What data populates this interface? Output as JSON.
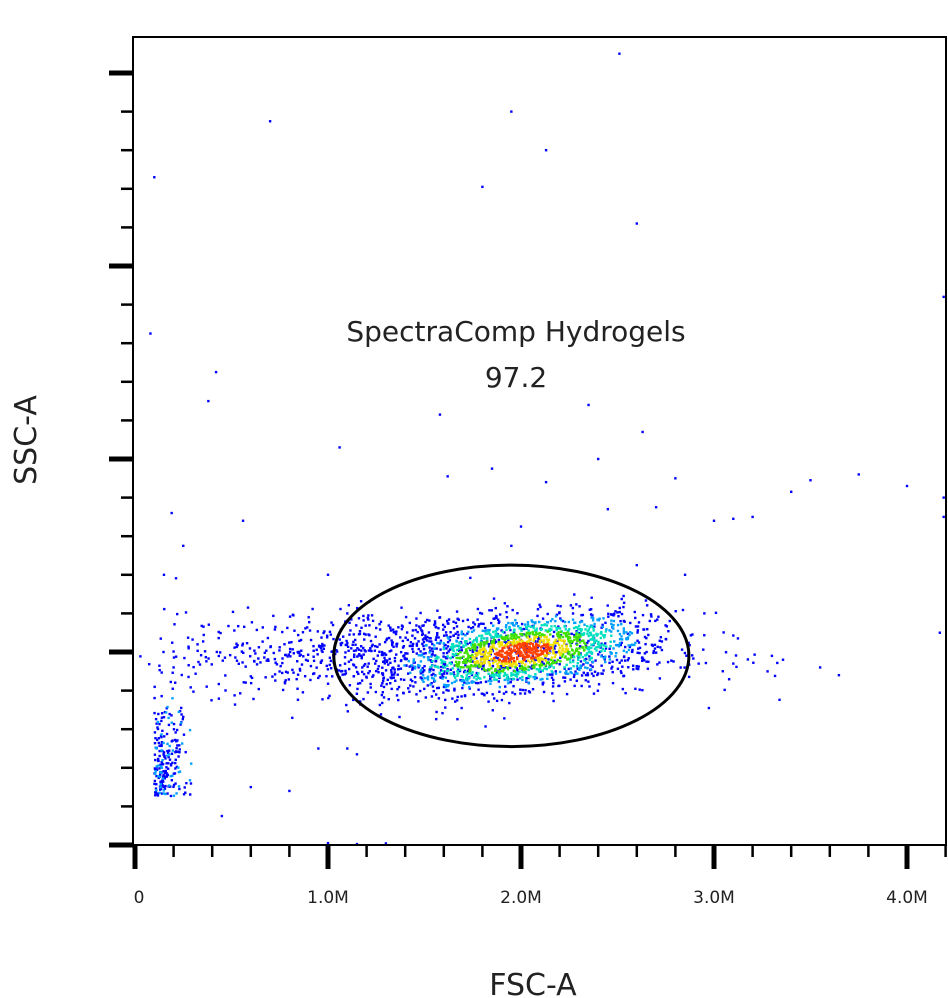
{
  "chart_data": {
    "type": "scatter",
    "subtype": "density-dot-plot",
    "xlabel": "FSC-A",
    "ylabel": "SSC-A",
    "xlim": [
      0,
      4200000
    ],
    "ylim": [
      0,
      4180000
    ],
    "x_ticks": [
      {
        "value": 0,
        "label": "0"
      },
      {
        "value": 1000000,
        "label": "1.0M"
      },
      {
        "value": 2000000,
        "label": "2.0M"
      },
      {
        "value": 3000000,
        "label": "3.0M"
      },
      {
        "value": 4000000,
        "label": "4.0M"
      }
    ],
    "y_major_ticks": [
      0,
      1000000,
      2000000,
      3000000,
      4000000
    ],
    "y_tick_labels_shown": false,
    "minor_tick_step": 200000,
    "grid": false,
    "density_colors": [
      "#0000ff",
      "#00a0ff",
      "#00e0c0",
      "#40e000",
      "#f0e000",
      "#ff4000"
    ],
    "populations": [
      {
        "center": [
          2000000,
          1000000
        ],
        "spread": [
          320000,
          90000
        ],
        "events": 1500
      },
      {
        "center": [
          1500000,
          990000
        ],
        "spread": [
          650000,
          110000
        ],
        "events": 1100
      },
      {
        "center": [
          100000,
          250000
        ],
        "spread": [
          80000,
          250000
        ],
        "events": 220
      }
    ],
    "gate": {
      "name": "SpectraComp Hydrogels",
      "percent": "97.2",
      "shape": "ellipse",
      "center": [
        1950000,
        980000
      ],
      "radii": [
        920000,
        470000
      ],
      "color": "#000000"
    },
    "outliers": [
      [
        2510000,
        4100000
      ],
      [
        700000,
        3750000
      ],
      [
        1950000,
        3800000
      ],
      [
        2130000,
        3600000
      ],
      [
        100000,
        3460000
      ],
      [
        1800000,
        3410000
      ],
      [
        2600000,
        3220000
      ],
      [
        80000,
        2650000
      ],
      [
        420000,
        2450000
      ],
      [
        380000,
        2300000
      ],
      [
        1580000,
        2230000
      ],
      [
        2350000,
        2280000
      ],
      [
        2630000,
        2140000
      ],
      [
        1060000,
        2060000
      ],
      [
        2400000,
        2000000
      ],
      [
        1620000,
        1910000
      ],
      [
        1850000,
        1950000
      ],
      [
        2130000,
        1880000
      ],
      [
        2800000,
        1900000
      ],
      [
        3500000,
        1890000
      ],
      [
        3750000,
        1920000
      ],
      [
        4000000,
        1860000
      ],
      [
        3400000,
        1830000
      ],
      [
        3100000,
        1690000
      ],
      [
        560000,
        1680000
      ],
      [
        190000,
        1720000
      ],
      [
        2450000,
        1740000
      ],
      [
        2700000,
        1750000
      ],
      [
        3000000,
        1680000
      ],
      [
        3200000,
        1700000
      ],
      [
        4190000,
        2840000
      ],
      [
        4190000,
        1800000
      ],
      [
        4190000,
        1700000
      ],
      [
        4170000,
        1100000
      ],
      [
        3550000,
        920000
      ],
      [
        3300000,
        980000
      ],
      [
        3100000,
        940000
      ],
      [
        2950000,
        1200000
      ],
      [
        2850000,
        1400000
      ],
      [
        2600000,
        1450000
      ],
      [
        1900000,
        1450000
      ],
      [
        1950000,
        1550000
      ],
      [
        2000000,
        1650000
      ],
      [
        1100000,
        1200000
      ],
      [
        1000000,
        1400000
      ],
      [
        900000,
        1180000
      ],
      [
        250000,
        1550000
      ],
      [
        150000,
        1400000
      ],
      [
        1100000,
        500000
      ],
      [
        1150000,
        470000
      ],
      [
        950000,
        500000
      ],
      [
        800000,
        280000
      ],
      [
        600000,
        300000
      ],
      [
        450000,
        150000
      ],
      [
        1000000,
        10000
      ],
      [
        1150000,
        5000
      ],
      [
        1300000,
        8000
      ]
    ]
  }
}
